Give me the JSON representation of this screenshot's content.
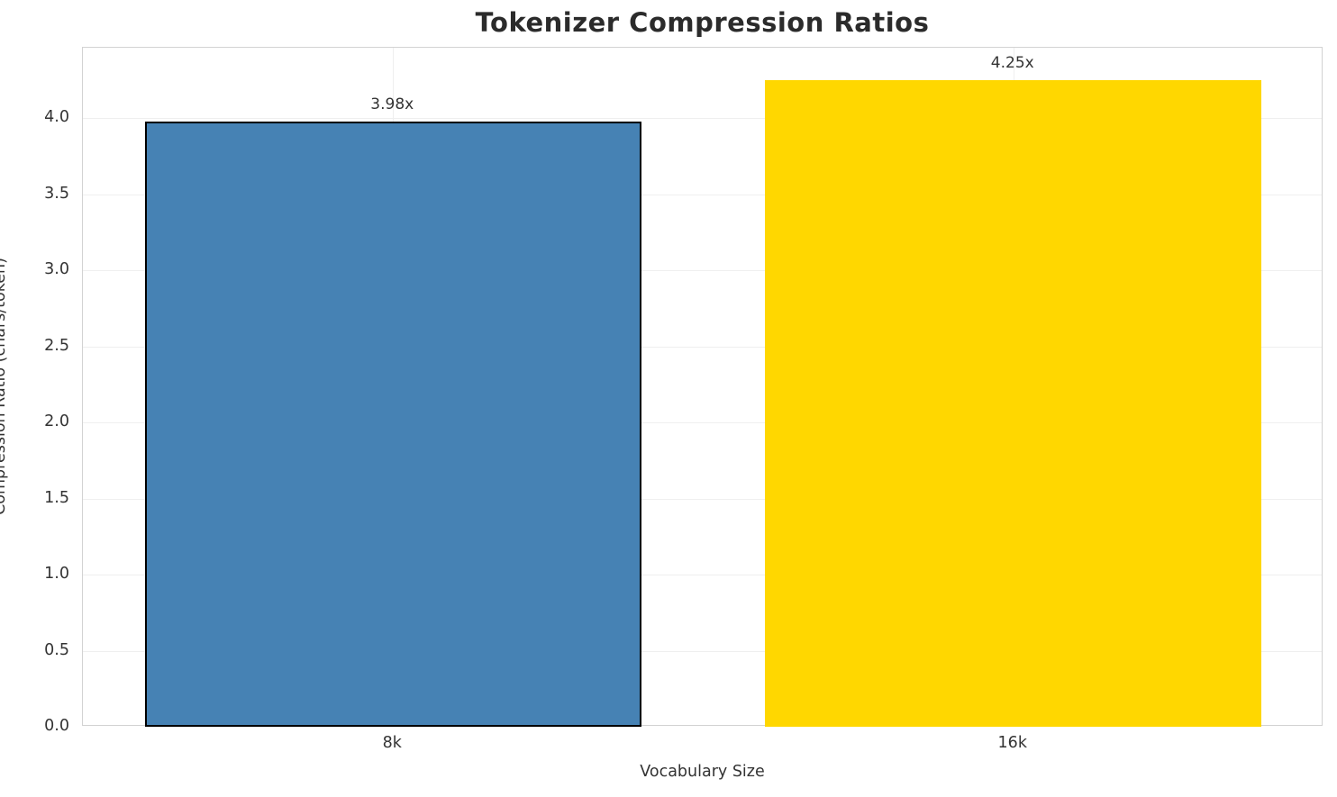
{
  "chart_data": {
    "type": "bar",
    "title": "Tokenizer Compression Ratios",
    "xlabel": "Vocabulary Size",
    "ylabel": "Compression Ratio (chars/token)",
    "categories": [
      "8k",
      "16k"
    ],
    "values": [
      3.98,
      4.25
    ],
    "value_labels": [
      "3.98x",
      "4.25x"
    ],
    "bar_colors": [
      "#4682b4",
      "#ffd700"
    ],
    "bar_edge_colors": [
      "#000000",
      null
    ],
    "bar_width_fraction": 0.8,
    "ylim": [
      0,
      4.4625
    ],
    "yticks": [
      0.0,
      0.5,
      1.0,
      1.5,
      2.0,
      2.5,
      3.0,
      3.5,
      4.0
    ],
    "ytick_labels": [
      "0.0",
      "0.5",
      "1.0",
      "1.5",
      "2.0",
      "2.5",
      "3.0",
      "3.5",
      "4.0"
    ],
    "grid": true,
    "legend": "none",
    "background_color": "#ffffff"
  }
}
